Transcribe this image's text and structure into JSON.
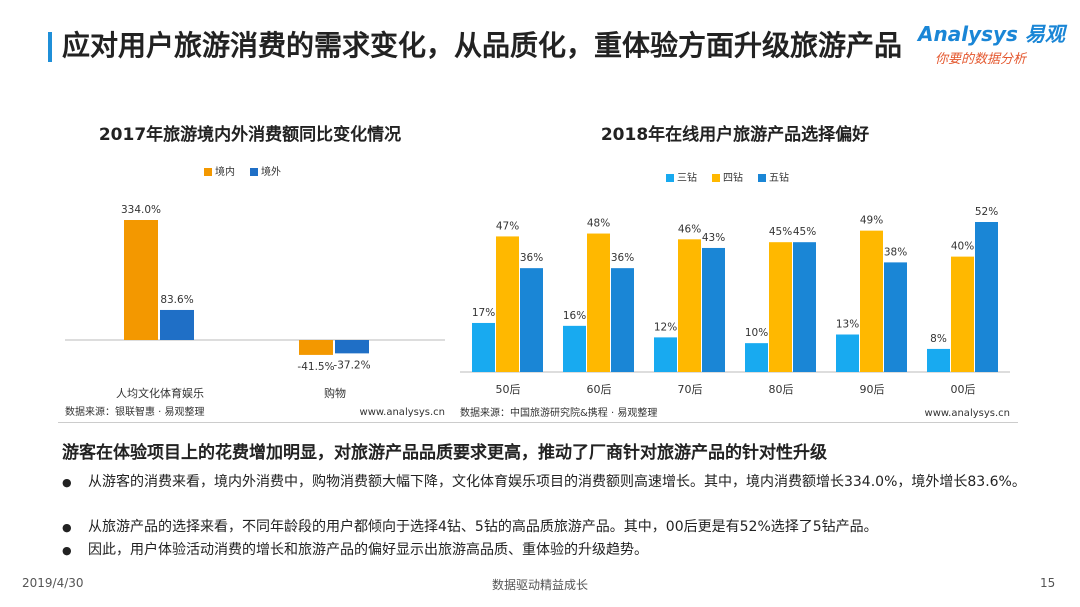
{
  "header": {
    "title": "应对用户旅游消费的需求变化，从品质化，重体验方面升级旅游产品",
    "logo": "Analysys 易观",
    "logo_sub": "你要的数据分析"
  },
  "chart_data": [
    {
      "type": "bar",
      "title": "2017年旅游境内外消费额同比变化情况",
      "categories": [
        "人均文化体育娱乐",
        "购物"
      ],
      "series": [
        {
          "name": "境内",
          "color": "#f39800",
          "values": [
            334.0,
            -41.5
          ],
          "value_labels": [
            "334.0%",
            "-41.5%"
          ]
        },
        {
          "name": "境外",
          "color": "#1f6fc6",
          "values": [
            83.6,
            -37.2
          ],
          "value_labels": [
            "83.6%",
            "-37.2%"
          ]
        }
      ],
      "source": "数据来源：银联智惠 · 易观整理",
      "site": "www.analysys.cn"
    },
    {
      "type": "bar",
      "title": "2018年在线用户旅游产品选择偏好",
      "categories": [
        "50后",
        "60后",
        "70后",
        "80后",
        "90后",
        "00后"
      ],
      "series": [
        {
          "name": "三钻",
          "color": "#18aaf0",
          "values": [
            17,
            16,
            12,
            10,
            13,
            8
          ],
          "value_labels": [
            "17%",
            "16%",
            "12%",
            "10%",
            "13%",
            "8%"
          ]
        },
        {
          "name": "四钻",
          "color": "#ffb800",
          "values": [
            47,
            48,
            46,
            45,
            49,
            40
          ],
          "value_labels": [
            "47%",
            "48%",
            "46%",
            "45%",
            "49%",
            "40%"
          ]
        },
        {
          "name": "五钻",
          "color": "#1a86d6",
          "values": [
            36,
            36,
            43,
            45,
            38,
            52
          ],
          "value_labels": [
            "36%",
            "36%",
            "43%",
            "45%",
            "38%",
            "52%"
          ]
        }
      ],
      "source": "数据来源：中国旅游研究院&携程 · 易观整理",
      "site": "www.analysys.cn"
    }
  ],
  "summary": {
    "heading": "游客在体验项目上的花费增加明显，对旅游产品品质要求更高，推动了厂商针对旅游产品的针对性升级",
    "bullets": [
      "从游客的消费来看，境内外消费中，购物消费额大幅下降，文化体育娱乐项目的消费额则高速增长。其中，境内消费额增长334.0%，境外增长83.6%。",
      "从旅游产品的选择来看，不同年龄段的用户都倾向于选择4钻、5钻的高品质旅游产品。其中，00后更是有52%选择了5钻产品。",
      "因此，用户体验活动消费的增长和旅游产品的偏好显示出旅游高品质、重体验的升级趋势。"
    ]
  },
  "footer": {
    "date": "2019/4/30",
    "center": "数据驱动精益成长",
    "page": "15"
  }
}
